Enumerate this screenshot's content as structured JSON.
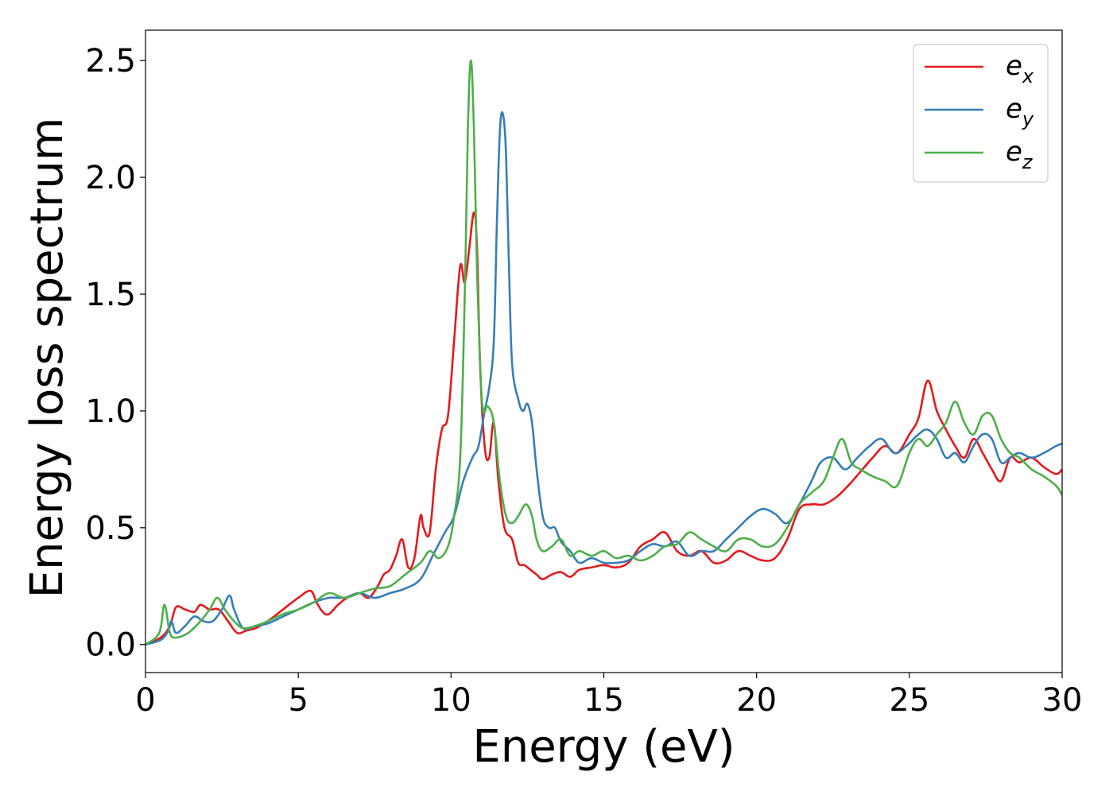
{
  "chart_data": {
    "type": "line",
    "xlabel": "Energy (eV)",
    "ylabel": "Energy loss spectrum",
    "xlim": [
      0,
      30
    ],
    "ylim": [
      -0.12,
      2.63
    ],
    "xticks": [
      "0",
      "5",
      "10",
      "15",
      "20",
      "25",
      "30"
    ],
    "yticks": [
      "0.0",
      "0.5",
      "1.0",
      "1.5",
      "2.0",
      "2.5"
    ],
    "grid": false,
    "legend_position": "top-right",
    "series": [
      {
        "name": "e_x",
        "legend_base": "e",
        "legend_sub": "x",
        "color": "#e41a1c",
        "x": [
          0,
          0.5,
          0.8,
          1.0,
          1.3,
          1.6,
          1.8,
          2.1,
          2.4,
          2.7,
          3.0,
          3.3,
          3.6,
          4.0,
          4.5,
          5.0,
          5.4,
          5.6,
          5.8,
          6.0,
          6.3,
          6.6,
          7.0,
          7.3,
          7.6,
          7.8,
          8.0,
          8.2,
          8.4,
          8.6,
          8.8,
          9.0,
          9.1,
          9.3,
          9.5,
          9.7,
          9.9,
          10.1,
          10.3,
          10.45,
          10.6,
          10.75,
          10.85,
          10.95,
          11.1,
          11.25,
          11.4,
          11.55,
          11.75,
          12.0,
          12.2,
          12.4,
          12.6,
          12.8,
          13.0,
          13.3,
          13.6,
          13.9,
          14.2,
          14.6,
          15.0,
          15.4,
          15.8,
          16.2,
          16.6,
          17.0,
          17.4,
          17.8,
          18.2,
          18.6,
          19.0,
          19.4,
          19.8,
          20.2,
          20.6,
          21.0,
          21.4,
          21.8,
          22.2,
          22.6,
          23.0,
          23.4,
          23.8,
          24.2,
          24.6,
          25.0,
          25.3,
          25.6,
          25.9,
          26.2,
          26.5,
          26.8,
          27.1,
          27.4,
          27.7,
          28.0,
          28.3,
          28.6,
          29.0,
          29.4,
          29.8,
          30.0
        ],
        "y": [
          0.0,
          0.03,
          0.08,
          0.16,
          0.15,
          0.14,
          0.17,
          0.15,
          0.15,
          0.1,
          0.05,
          0.06,
          0.07,
          0.1,
          0.15,
          0.2,
          0.23,
          0.18,
          0.14,
          0.13,
          0.17,
          0.2,
          0.22,
          0.2,
          0.25,
          0.3,
          0.32,
          0.38,
          0.45,
          0.33,
          0.37,
          0.55,
          0.5,
          0.48,
          0.75,
          0.92,
          0.98,
          1.3,
          1.62,
          1.55,
          1.7,
          1.85,
          1.7,
          1.2,
          0.85,
          0.8,
          0.95,
          0.7,
          0.5,
          0.45,
          0.35,
          0.34,
          0.32,
          0.3,
          0.28,
          0.3,
          0.31,
          0.29,
          0.32,
          0.33,
          0.34,
          0.33,
          0.35,
          0.42,
          0.45,
          0.48,
          0.4,
          0.38,
          0.4,
          0.35,
          0.36,
          0.4,
          0.38,
          0.36,
          0.37,
          0.45,
          0.58,
          0.6,
          0.6,
          0.63,
          0.68,
          0.74,
          0.8,
          0.85,
          0.82,
          0.9,
          0.97,
          1.13,
          1.0,
          0.92,
          0.85,
          0.8,
          0.88,
          0.82,
          0.75,
          0.7,
          0.8,
          0.78,
          0.8,
          0.76,
          0.73,
          0.75
        ]
      },
      {
        "name": "e_y",
        "legend_base": "e",
        "legend_sub": "y",
        "color": "#377eb8",
        "x": [
          0,
          0.5,
          0.75,
          0.85,
          1.0,
          1.3,
          1.6,
          1.9,
          2.2,
          2.5,
          2.75,
          2.9,
          3.2,
          3.6,
          4.0,
          4.5,
          5.0,
          5.5,
          6.0,
          6.5,
          7.0,
          7.5,
          8.0,
          8.5,
          9.0,
          9.4,
          9.8,
          10.1,
          10.4,
          10.7,
          10.9,
          11.1,
          11.25,
          11.4,
          11.5,
          11.6,
          11.7,
          11.8,
          11.9,
          12.0,
          12.2,
          12.35,
          12.5,
          12.65,
          12.8,
          13.0,
          13.2,
          13.4,
          13.6,
          13.9,
          14.2,
          14.6,
          15.0,
          15.4,
          15.8,
          16.2,
          16.6,
          17.0,
          17.4,
          17.8,
          18.2,
          18.6,
          19.0,
          19.4,
          19.8,
          20.2,
          20.6,
          21.0,
          21.4,
          21.8,
          22.1,
          22.5,
          22.9,
          23.3,
          23.7,
          24.1,
          24.5,
          24.9,
          25.3,
          25.6,
          25.9,
          26.2,
          26.5,
          26.8,
          27.1,
          27.4,
          27.7,
          28.0,
          28.3,
          28.6,
          29.0,
          29.4,
          29.8,
          30.0
        ],
        "y": [
          0.0,
          0.02,
          0.06,
          0.1,
          0.05,
          0.08,
          0.12,
          0.1,
          0.1,
          0.15,
          0.21,
          0.15,
          0.07,
          0.08,
          0.09,
          0.12,
          0.15,
          0.18,
          0.2,
          0.2,
          0.22,
          0.2,
          0.22,
          0.24,
          0.28,
          0.38,
          0.48,
          0.55,
          0.7,
          0.8,
          0.85,
          1.0,
          1.1,
          1.3,
          1.8,
          2.2,
          2.27,
          2.1,
          1.6,
          1.2,
          1.05,
          1.0,
          1.03,
          0.95,
          0.75,
          0.55,
          0.5,
          0.5,
          0.44,
          0.4,
          0.35,
          0.37,
          0.35,
          0.35,
          0.36,
          0.4,
          0.43,
          0.42,
          0.44,
          0.38,
          0.4,
          0.4,
          0.45,
          0.5,
          0.55,
          0.58,
          0.56,
          0.52,
          0.6,
          0.7,
          0.78,
          0.8,
          0.75,
          0.8,
          0.85,
          0.88,
          0.82,
          0.85,
          0.9,
          0.92,
          0.88,
          0.8,
          0.82,
          0.78,
          0.85,
          0.9,
          0.88,
          0.78,
          0.8,
          0.82,
          0.8,
          0.82,
          0.85,
          0.86
        ]
      },
      {
        "name": "e_z",
        "legend_base": "e",
        "legend_sub": "z",
        "color": "#4daf4a",
        "x": [
          0,
          0.45,
          0.62,
          0.8,
          1.0,
          1.4,
          1.8,
          2.1,
          2.35,
          2.6,
          2.9,
          3.2,
          3.6,
          4.0,
          4.5,
          5.0,
          5.5,
          6.0,
          6.5,
          7.0,
          7.5,
          8.0,
          8.5,
          9.0,
          9.3,
          9.6,
          9.9,
          10.1,
          10.3,
          10.45,
          10.55,
          10.65,
          10.75,
          10.85,
          10.95,
          11.05,
          11.2,
          11.4,
          11.6,
          11.8,
          12.0,
          12.2,
          12.45,
          12.65,
          12.8,
          13.0,
          13.3,
          13.6,
          13.9,
          14.2,
          14.6,
          15.0,
          15.4,
          15.8,
          16.2,
          16.6,
          17.0,
          17.4,
          17.8,
          18.2,
          18.6,
          19.0,
          19.4,
          19.8,
          20.2,
          20.6,
          21.0,
          21.4,
          21.8,
          22.2,
          22.5,
          22.8,
          23.1,
          23.4,
          23.8,
          24.2,
          24.6,
          25.0,
          25.3,
          25.6,
          25.9,
          26.2,
          26.5,
          26.8,
          27.1,
          27.4,
          27.7,
          28.0,
          28.3,
          28.6,
          29.0,
          29.4,
          29.8,
          30.0
        ],
        "y": [
          0.0,
          0.05,
          0.17,
          0.05,
          0.03,
          0.05,
          0.1,
          0.15,
          0.2,
          0.15,
          0.1,
          0.07,
          0.08,
          0.1,
          0.13,
          0.15,
          0.18,
          0.22,
          0.2,
          0.22,
          0.24,
          0.25,
          0.3,
          0.35,
          0.4,
          0.37,
          0.42,
          0.55,
          0.8,
          1.5,
          2.2,
          2.5,
          2.2,
          1.6,
          1.2,
          1.0,
          1.02,
          0.95,
          0.7,
          0.55,
          0.52,
          0.55,
          0.6,
          0.55,
          0.45,
          0.4,
          0.42,
          0.45,
          0.38,
          0.4,
          0.38,
          0.4,
          0.37,
          0.38,
          0.36,
          0.38,
          0.42,
          0.43,
          0.48,
          0.45,
          0.42,
          0.4,
          0.45,
          0.45,
          0.42,
          0.43,
          0.5,
          0.6,
          0.65,
          0.7,
          0.8,
          0.88,
          0.78,
          0.75,
          0.72,
          0.7,
          0.68,
          0.82,
          0.88,
          0.85,
          0.9,
          0.95,
          1.04,
          0.95,
          0.9,
          0.98,
          0.98,
          0.88,
          0.82,
          0.8,
          0.75,
          0.72,
          0.68,
          0.64
        ]
      }
    ]
  }
}
